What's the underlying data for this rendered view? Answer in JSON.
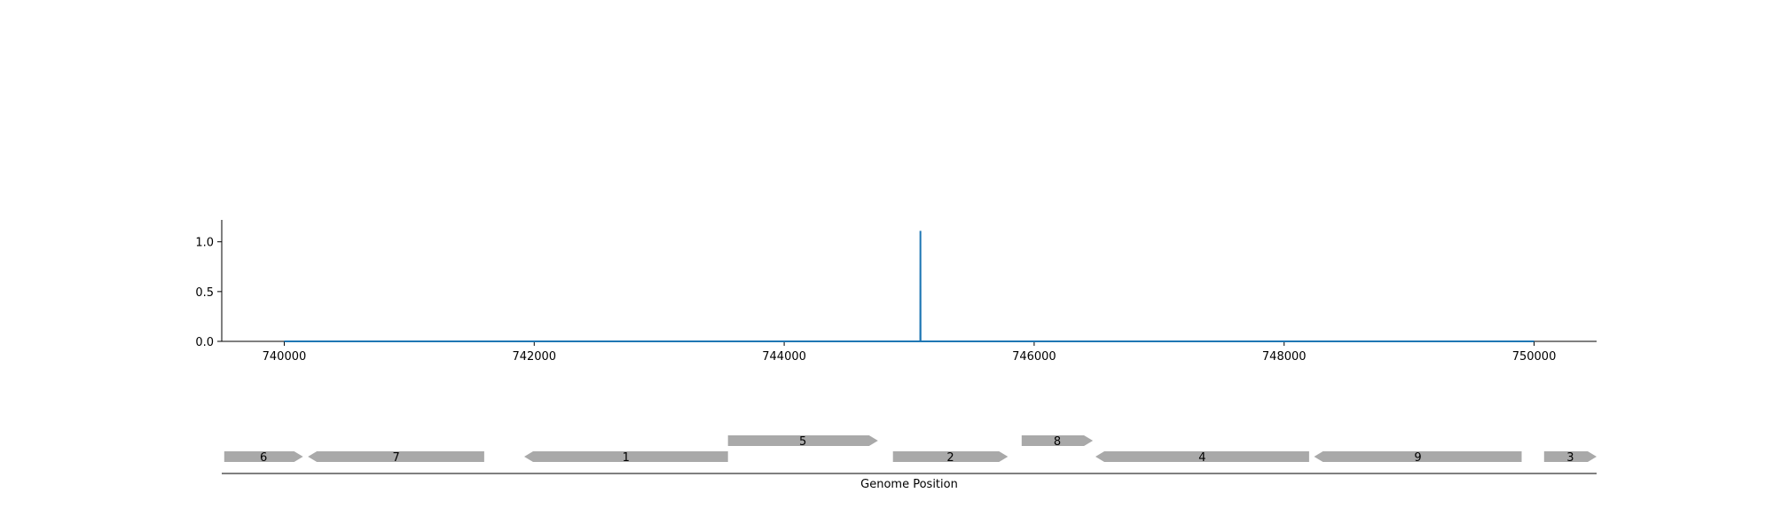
{
  "chart_data": [
    {
      "type": "line",
      "title": "",
      "xlabel": "",
      "ylabel": "",
      "xlim": [
        739500,
        750500
      ],
      "ylim": [
        0,
        1.22
      ],
      "xticks": [
        740000,
        742000,
        744000,
        746000,
        748000,
        750000
      ],
      "xtick_labels": [
        "740000",
        "742000",
        "744000",
        "746000",
        "748000",
        "750000"
      ],
      "yticks": [
        0.0,
        0.5,
        1.0
      ],
      "ytick_labels": [
        "0.0",
        "0.5",
        "1.0"
      ],
      "grid": false,
      "series": [
        {
          "color": "#1f77b4",
          "x": [
            740000,
            745089,
            745090,
            745091,
            750000
          ],
          "y": [
            0,
            0,
            1.11,
            0,
            0
          ]
        }
      ]
    },
    {
      "type": "gene-track",
      "xlabel": "Genome Position",
      "xlim": [
        739500,
        750500
      ],
      "features": [
        {
          "label": "6",
          "start": 739520,
          "end": 740150,
          "strand": 1,
          "row": 0
        },
        {
          "label": "7",
          "start": 740190,
          "end": 741600,
          "strand": -1,
          "row": 0
        },
        {
          "label": "1",
          "start": 741920,
          "end": 743550,
          "strand": -1,
          "row": 0
        },
        {
          "label": "5",
          "start": 743550,
          "end": 744750,
          "strand": 1,
          "row": 1
        },
        {
          "label": "2",
          "start": 744870,
          "end": 745790,
          "strand": 1,
          "row": 0
        },
        {
          "label": "8",
          "start": 745900,
          "end": 746470,
          "strand": 1,
          "row": 1
        },
        {
          "label": "4",
          "start": 746490,
          "end": 748200,
          "strand": -1,
          "row": 0
        },
        {
          "label": "9",
          "start": 748240,
          "end": 749900,
          "strand": -1,
          "row": 0
        },
        {
          "label": "3",
          "start": 750080,
          "end": 750500,
          "strand": 1,
          "row": 0
        }
      ],
      "feature_color": "#a9a9a9"
    }
  ]
}
